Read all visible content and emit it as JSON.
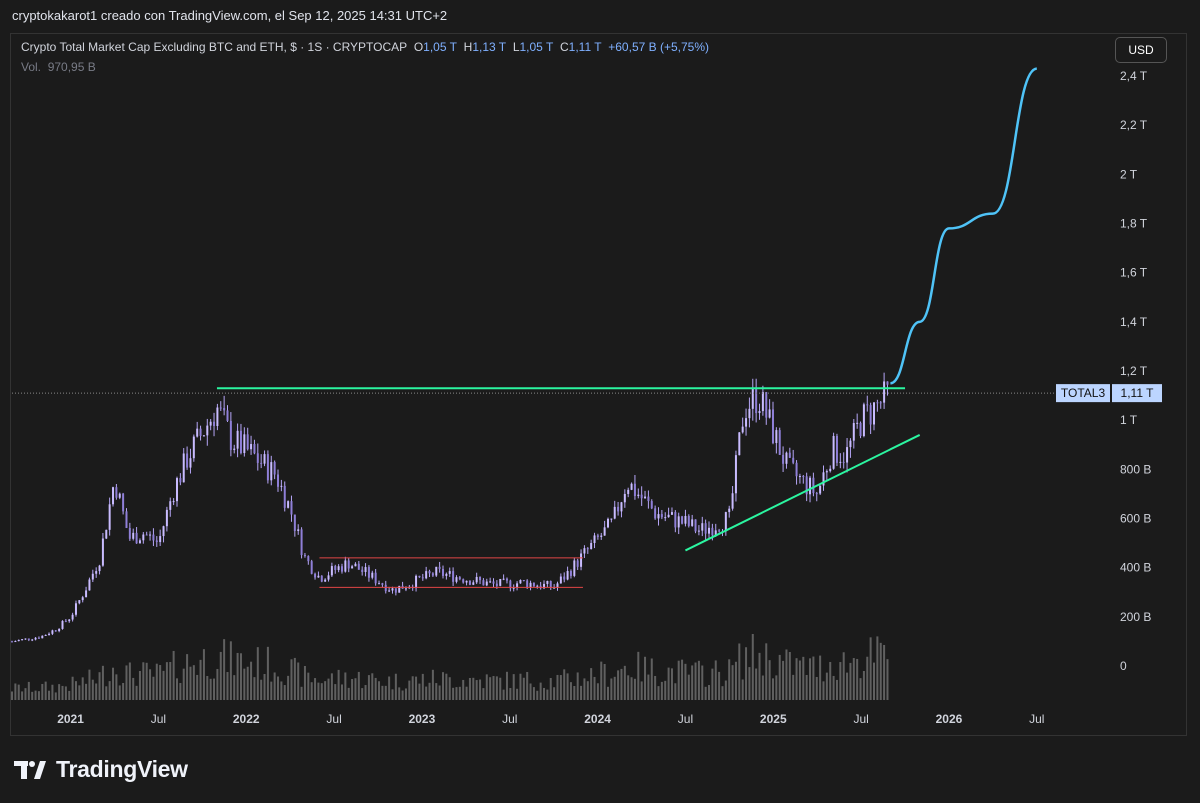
{
  "header": {
    "text": "cryptokakarot1 creado con TradingView.com, el Sep 12, 2025 14:31 UTC+2"
  },
  "legend": {
    "title": "Crypto Total Market Cap Excluding BTC and ETH, $ · 1S · CRYPTOCAP",
    "o_label": "O",
    "o": "1,05 T",
    "h_label": "H",
    "h": "1,13 T",
    "l_label": "L",
    "l": "1,05 T",
    "c_label": "C",
    "c": "1,11 T",
    "change": "+60,57 B (+5,75%)"
  },
  "volume": {
    "label": "Vol.",
    "value": "970,95 B"
  },
  "currency_button": "USD",
  "price_tag": {
    "symbol": "TOTAL3",
    "value": "1,11 T"
  },
  "footer": {
    "brand": "TradingView"
  },
  "colors": {
    "background": "#1b1b1b",
    "candle": "#b6a6f7",
    "volume": "#787878",
    "green_line": "#2bf5a0",
    "projection": "#4fc3f7",
    "range_box": "#e14646"
  },
  "chart_data": {
    "type": "candlestick",
    "series_name": "TOTAL3",
    "y_axis": {
      "ticks": [
        0,
        0.2,
        0.4,
        0.6,
        0.8,
        1.0,
        1.2,
        1.4,
        1.6,
        1.8,
        2.0,
        2.2,
        2.4
      ],
      "tick_labels": [
        "0",
        "200 B",
        "400 B",
        "600 B",
        "800 B",
        "1 T",
        "1,2 T",
        "1,4 T",
        "1,6 T",
        "1,8 T",
        "2 T",
        "2,2 T",
        "2,4 T"
      ],
      "unit": "T USD",
      "ylim": [
        -0.06,
        2.5
      ]
    },
    "x_axis": {
      "tick_labels": [
        "2021",
        "Jul",
        "2022",
        "Jul",
        "2023",
        "Jul",
        "2024",
        "Jul",
        "2025",
        "Jul",
        "2026",
        "Jul"
      ],
      "tick_dates": [
        "2021-01",
        "2021-07",
        "2022-01",
        "2022-07",
        "2023-01",
        "2023-07",
        "2024-01",
        "2024-07",
        "2025-01",
        "2025-07",
        "2026-01",
        "2026-07"
      ],
      "xlim": [
        "2020-09",
        "2026-12"
      ]
    },
    "price_path": {
      "dates": [
        "2020-09",
        "2020-11",
        "2020-12",
        "2021-01",
        "2021-02",
        "2021-03",
        "2021-04",
        "2021-05",
        "2021-06",
        "2021-07",
        "2021-08",
        "2021-09",
        "2021-11",
        "2021-12",
        "2022-01",
        "2022-03",
        "2022-04",
        "2022-05",
        "2022-06",
        "2022-08",
        "2022-11",
        "2022-12",
        "2023-02",
        "2023-06",
        "2023-08",
        "2023-10",
        "2023-11",
        "2023-12",
        "2024-02",
        "2024-03",
        "2024-05",
        "2024-07",
        "2024-08",
        "2024-10",
        "2024-11",
        "2024-12",
        "2025-01",
        "2025-02",
        "2025-04",
        "2025-05",
        "2025-06",
        "2025-07",
        "2025-09"
      ],
      "close": [
        0.1,
        0.12,
        0.15,
        0.2,
        0.31,
        0.44,
        0.76,
        0.52,
        0.54,
        0.5,
        0.71,
        0.85,
        1.05,
        0.92,
        0.88,
        0.78,
        0.64,
        0.44,
        0.36,
        0.42,
        0.31,
        0.33,
        0.38,
        0.33,
        0.34,
        0.32,
        0.38,
        0.45,
        0.58,
        0.75,
        0.62,
        0.58,
        0.55,
        0.6,
        1.05,
        1.1,
        0.95,
        0.8,
        0.7,
        0.88,
        0.86,
        1.0,
        1.11
      ]
    },
    "volume_note": "volume histogram bars at bottom, peak ~0.46 T in Dec 2024",
    "annotations": [
      {
        "type": "horizontal_line",
        "label": "resistance",
        "y": 1.13,
        "from": "2021-11",
        "to": "2025-10"
      },
      {
        "type": "range_box",
        "y_top": 0.44,
        "y_bottom": 0.32,
        "from": "2022-06",
        "to": "2023-12"
      },
      {
        "type": "trend_line",
        "from": {
          "date": "2024-07",
          "y": 0.47
        },
        "to": {
          "date": "2025-11",
          "y": 0.94
        }
      },
      {
        "type": "projection",
        "dates": [
          "2025-09",
          "2025-11",
          "2026-01",
          "2026-04",
          "2026-07"
        ],
        "y": [
          1.15,
          1.4,
          1.78,
          1.84,
          2.43
        ]
      }
    ]
  }
}
